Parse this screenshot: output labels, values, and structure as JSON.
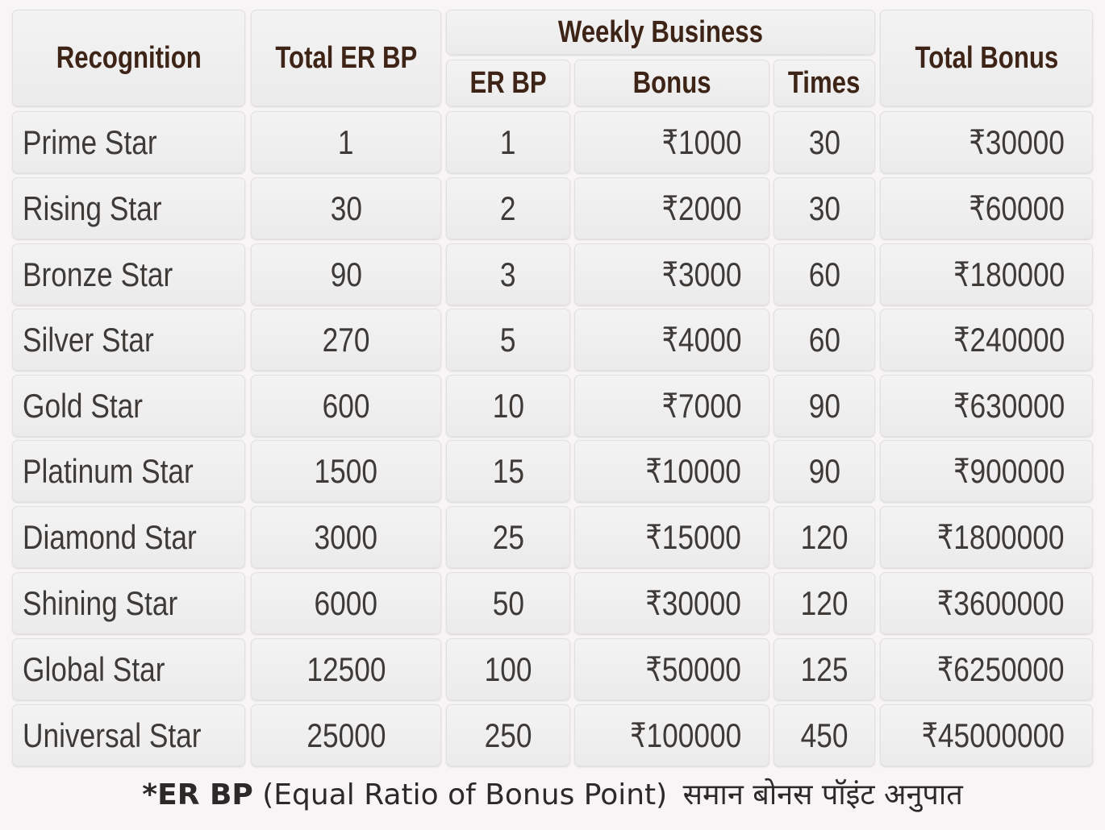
{
  "table": {
    "headers": {
      "recognition": "Recognition",
      "total_er_bp": "Total ER BP",
      "weekly_business": "Weekly Business",
      "er_bp": "ER BP",
      "bonus": "Bonus",
      "times": "Times",
      "total_bonus": "Total Bonus"
    },
    "rows": [
      {
        "recognition": "Prime Star",
        "total_er_bp": "1",
        "er_bp": "1",
        "bonus": "₹1000",
        "times": "30",
        "total_bonus": "₹30000"
      },
      {
        "recognition": "Rising Star",
        "total_er_bp": "30",
        "er_bp": "2",
        "bonus": "₹2000",
        "times": "30",
        "total_bonus": "₹60000"
      },
      {
        "recognition": "Bronze Star",
        "total_er_bp": "90",
        "er_bp": "3",
        "bonus": "₹3000",
        "times": "60",
        "total_bonus": "₹180000"
      },
      {
        "recognition": "Silver Star",
        "total_er_bp": "270",
        "er_bp": "5",
        "bonus": "₹4000",
        "times": "60",
        "total_bonus": "₹240000"
      },
      {
        "recognition": "Gold Star",
        "total_er_bp": "600",
        "er_bp": "10",
        "bonus": "₹7000",
        "times": "90",
        "total_bonus": "₹630000"
      },
      {
        "recognition": "Platinum Star",
        "total_er_bp": "1500",
        "er_bp": "15",
        "bonus": "₹10000",
        "times": "90",
        "total_bonus": "₹900000"
      },
      {
        "recognition": "Diamond Star",
        "total_er_bp": "3000",
        "er_bp": "25",
        "bonus": "₹15000",
        "times": "120",
        "total_bonus": "₹1800000"
      },
      {
        "recognition": "Shining Star",
        "total_er_bp": "6000",
        "er_bp": "50",
        "bonus": "₹30000",
        "times": "120",
        "total_bonus": "₹3600000"
      },
      {
        "recognition": "Global Star",
        "total_er_bp": "12500",
        "er_bp": "100",
        "bonus": "₹50000",
        "times": "125",
        "total_bonus": "₹6250000"
      },
      {
        "recognition": "Universal Star",
        "total_er_bp": "25000",
        "er_bp": "250",
        "bonus": "₹100000",
        "times": "450",
        "total_bonus": "₹45000000"
      }
    ]
  },
  "footnote": {
    "term": "*ER BP",
    "definition": "(Equal Ratio of Bonus Point)",
    "hindi": "समान बोनस पॉइंट अनुपात"
  },
  "colors": {
    "header_text": "#3d2416",
    "body_text": "#3d3a37",
    "cell_background": "#efeeee",
    "page_background": "#f7f5f5"
  }
}
